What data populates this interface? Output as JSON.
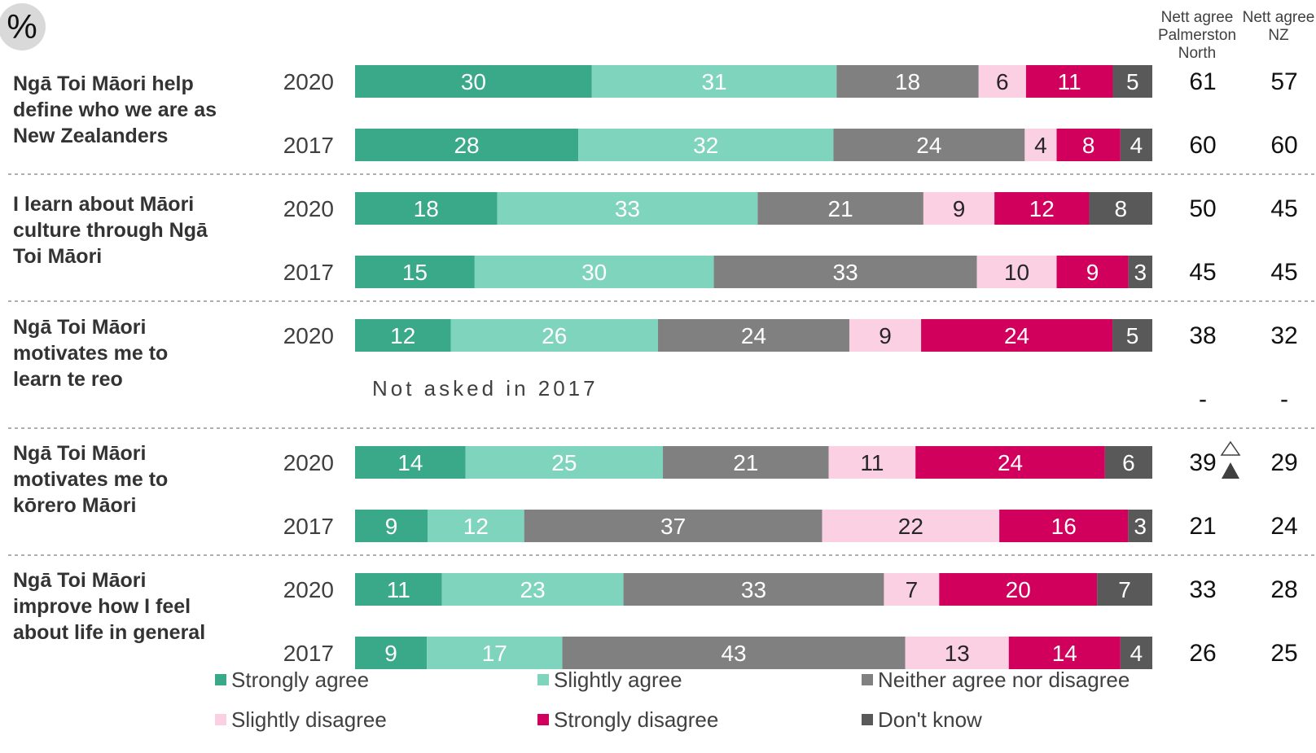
{
  "badge": "%",
  "headers": {
    "nett_palmerston": "Nett agree\nPalmerston\nNorth",
    "nett_nz": "Nett agree\nNZ"
  },
  "colors": {
    "strongly_agree": "#3aa98a",
    "slightly_agree": "#7fd4bd",
    "neither": "#808080",
    "slightly_disagree": "#fcd0e3",
    "strongly_disagree": "#d1005d",
    "dont_know": "#595959"
  },
  "not_asked_text": "Not asked in 2017",
  "chart_data": {
    "type": "bar",
    "orientation": "horizontal",
    "stacked": true,
    "unit": "%",
    "legend_placement": "bottom",
    "series": [
      {
        "name": "Strongly agree",
        "color": "#3aa98a"
      },
      {
        "name": "Slightly agree",
        "color": "#7fd4bd"
      },
      {
        "name": "Neither agree nor disagree",
        "color": "#808080"
      },
      {
        "name": "Slightly disagree",
        "color": "#fcd0e3"
      },
      {
        "name": "Strongly disagree",
        "color": "#d1005d"
      },
      {
        "name": "Don't know",
        "color": "#595959"
      }
    ],
    "groups": [
      {
        "label": "Ngā Toi Māori help\ndefine who we are as\nNew Zealanders",
        "rows": [
          {
            "year": "2020",
            "values": [
              30,
              31,
              18,
              6,
              11,
              5
            ],
            "nett_pn": "61",
            "nett_nz": "57"
          },
          {
            "year": "2017",
            "values": [
              28,
              32,
              24,
              4,
              8,
              4
            ],
            "nett_pn": "60",
            "nett_nz": "60"
          }
        ]
      },
      {
        "label": "I learn about Māori\nculture through Ngā\nToi Māori",
        "rows": [
          {
            "year": "2020",
            "values": [
              18,
              33,
              21,
              9,
              12,
              8
            ],
            "nett_pn": "50",
            "nett_nz": "45"
          },
          {
            "year": "2017",
            "values": [
              15,
              30,
              33,
              10,
              9,
              3
            ],
            "nett_pn": "45",
            "nett_nz": "45"
          }
        ]
      },
      {
        "label": "Ngā Toi Māori\nmotivates me to\nlearn te reo",
        "rows": [
          {
            "year": "2020",
            "values": [
              12,
              26,
              24,
              9,
              24,
              5
            ],
            "nett_pn": "38",
            "nett_nz": "32"
          },
          {
            "year": "",
            "values": null,
            "nett_pn": "-",
            "nett_nz": "-"
          }
        ]
      },
      {
        "label": "Ngā Toi Māori\nmotivates me to\nkōrero Māori",
        "rows": [
          {
            "year": "2020",
            "values": [
              14,
              25,
              21,
              11,
              24,
              6
            ],
            "nett_pn": "39",
            "nett_nz": "29",
            "significance": "increase"
          },
          {
            "year": "2017",
            "values": [
              9,
              12,
              37,
              22,
              16,
              3
            ],
            "nett_pn": "21",
            "nett_nz": "24"
          }
        ]
      },
      {
        "label": "Ngā Toi Māori\nimprove how I feel\nabout life in general",
        "rows": [
          {
            "year": "2020",
            "values": [
              11,
              23,
              33,
              7,
              20,
              7
            ],
            "nett_pn": "33",
            "nett_nz": "28"
          },
          {
            "year": "2017",
            "values": [
              9,
              17,
              43,
              13,
              14,
              4
            ],
            "nett_pn": "26",
            "nett_nz": "25"
          }
        ]
      }
    ]
  }
}
